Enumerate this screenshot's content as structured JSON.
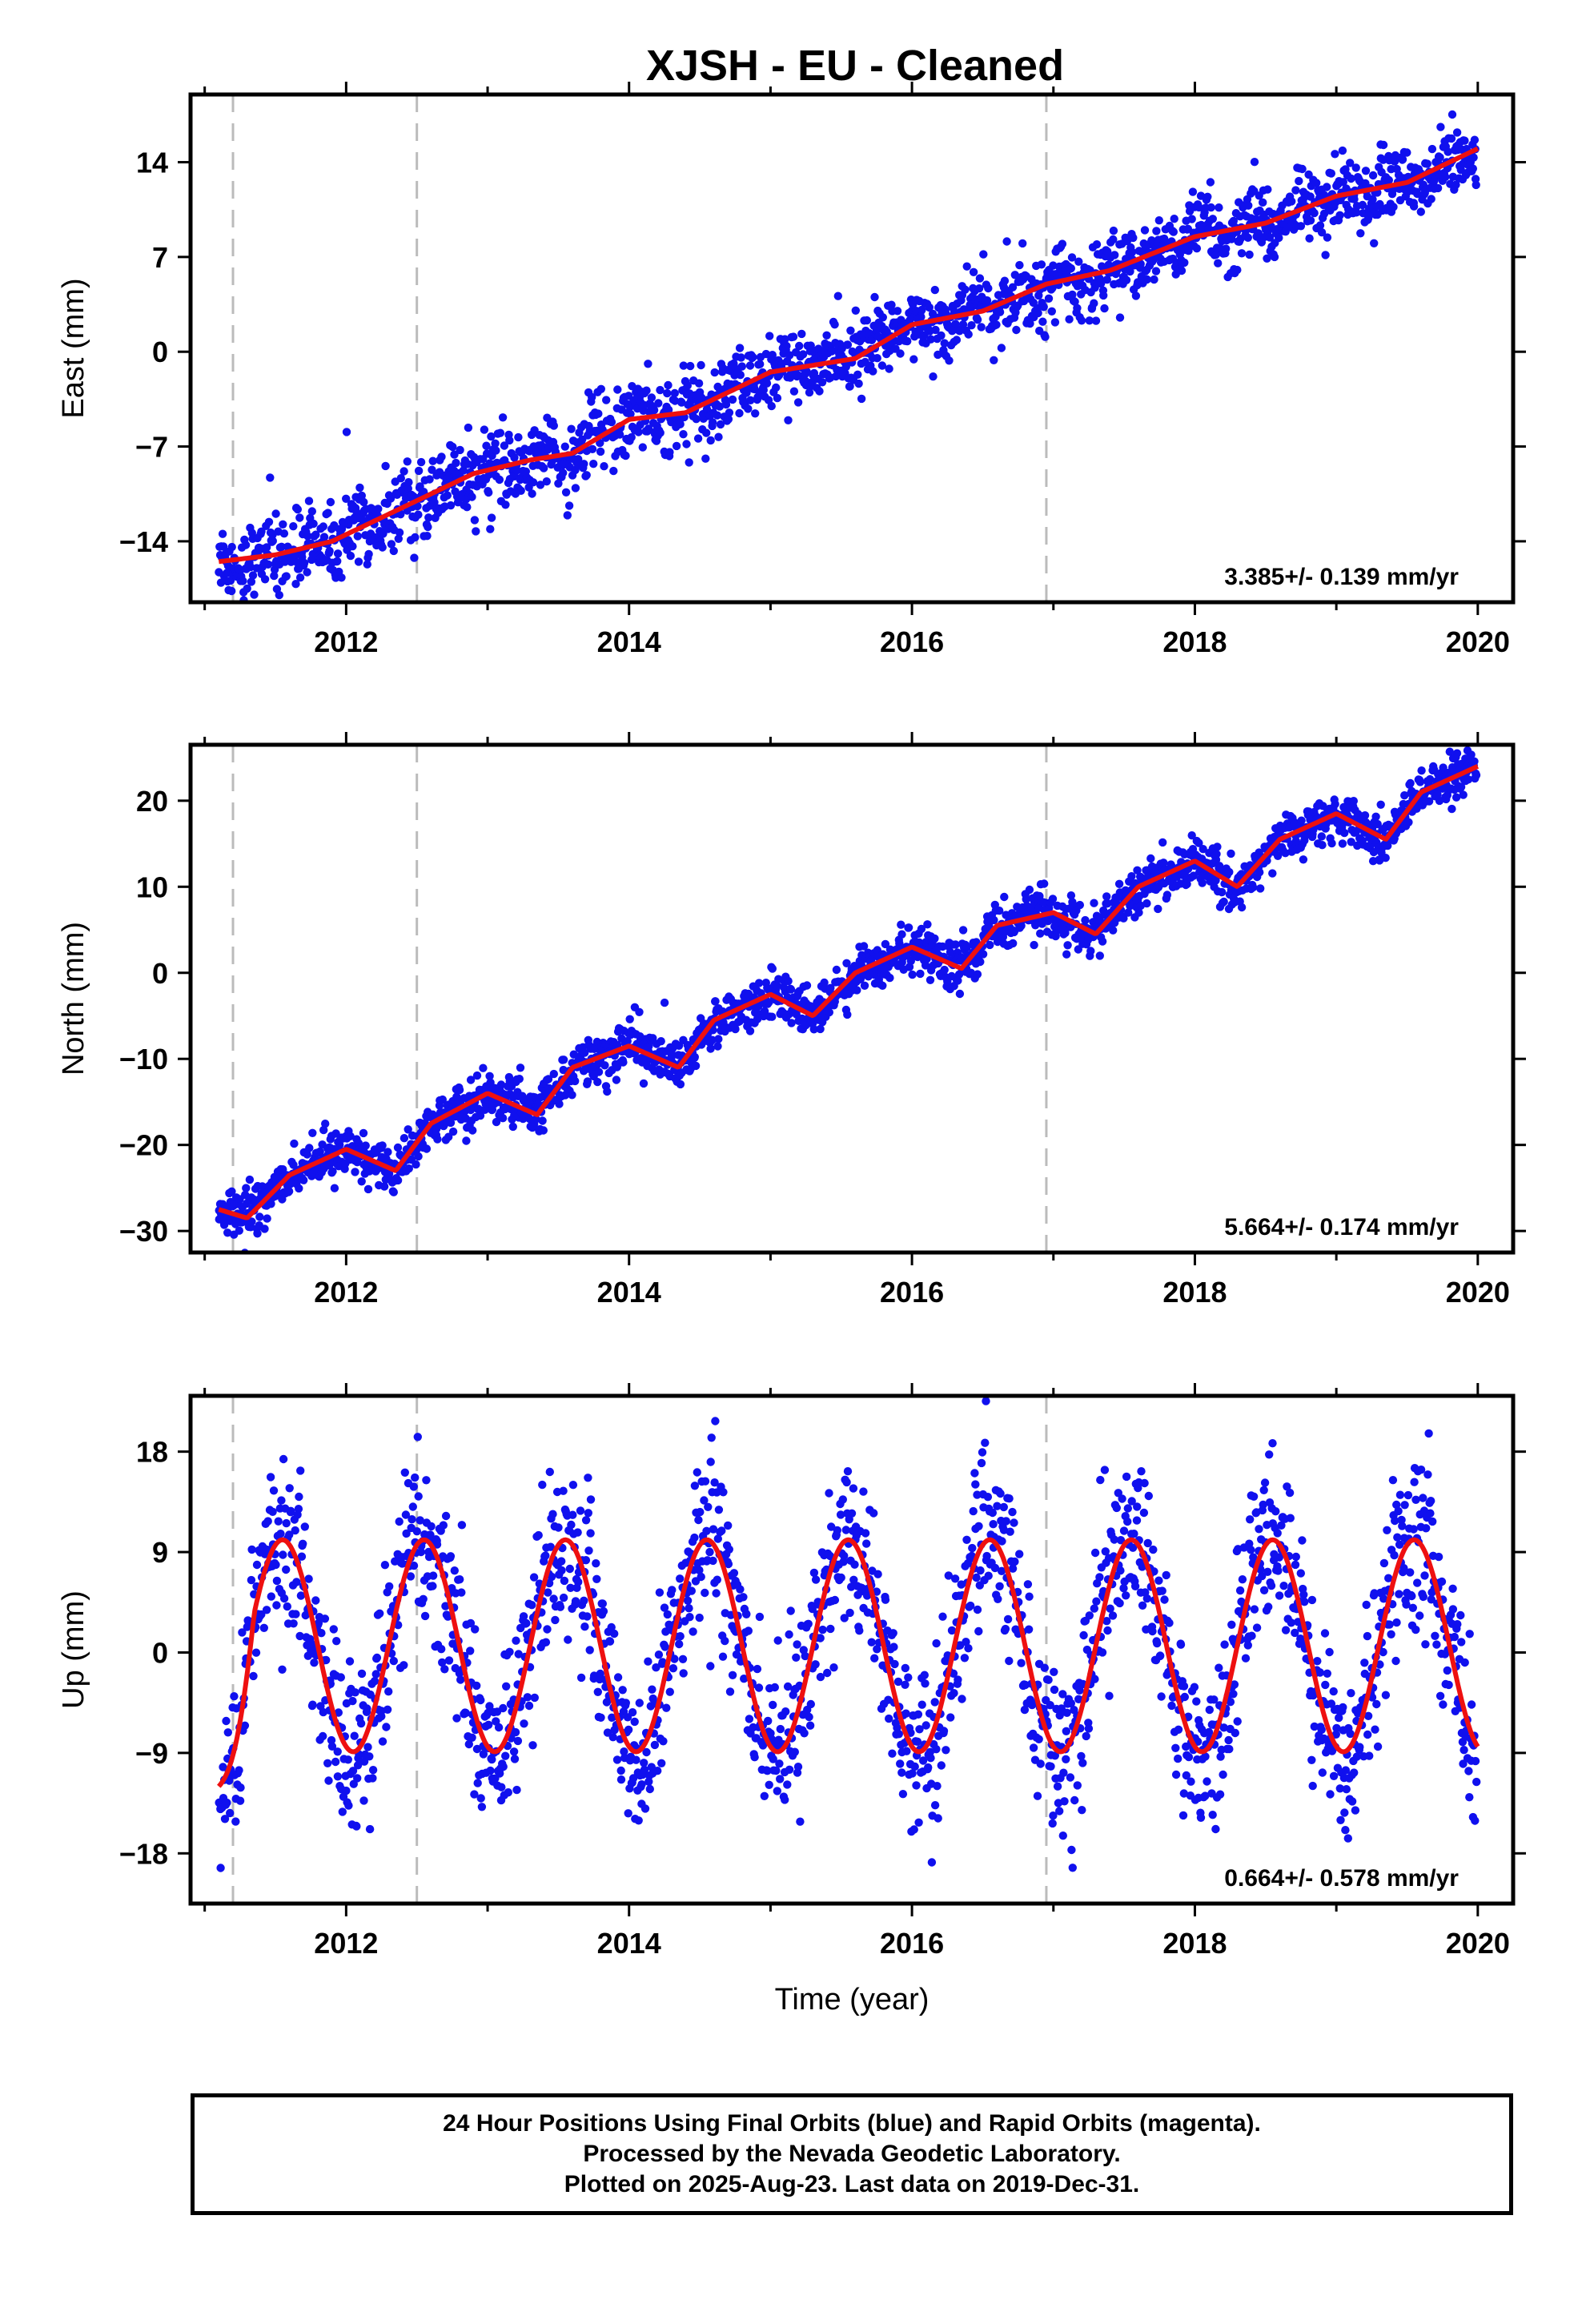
{
  "title": "XJSH  - EU - Cleaned",
  "footer": {
    "line1": "24 Hour Positions Using Final Orbits (blue) and Rapid Orbits (magenta).",
    "line2": "Processed by the Nevada Geodetic Laboratory.",
    "line3": "Plotted on 2025-Aug-23. Last data on 2019-Dec-31."
  },
  "colors": {
    "points": "#1010ee",
    "fit": "#ee1010",
    "breaks": "#bbbbbb",
    "frame": "#000000"
  },
  "chart_data": [
    {
      "type": "scatter",
      "panel": "east",
      "ylabel": "East (mm)",
      "xlabel": "",
      "xlim": [
        2010.9,
        2020.25
      ],
      "ylim": [
        -18.5,
        19
      ],
      "x_ticks": [
        2012,
        2014,
        2016,
        2018,
        2020
      ],
      "y_ticks": [
        -14,
        -7,
        0,
        7,
        14
      ],
      "rate_text": "3.385+/- 0.139 mm/yr",
      "break_lines": [
        2011.2,
        2012.5,
        2016.95
      ],
      "series": [
        {
          "role": "fit",
          "x": [
            2011.1,
            2011.5,
            2011.9,
            2012.2,
            2012.5,
            2012.9,
            2013.3,
            2013.6,
            2014.0,
            2014.4,
            2015.0,
            2015.6,
            2016.0,
            2016.5,
            2016.95,
            2017.4,
            2018.0,
            2018.5,
            2019.0,
            2019.5,
            2020.0
          ],
          "y": [
            -15.5,
            -15.0,
            -14.0,
            -12.5,
            -11.0,
            -9.0,
            -8.0,
            -7.5,
            -5.0,
            -4.5,
            -1.5,
            -0.5,
            2.0,
            3.0,
            5.0,
            6.0,
            8.5,
            9.5,
            11.5,
            12.5,
            15.0
          ]
        },
        {
          "role": "data",
          "scatter_mm": 1.3,
          "seasonal_mm": 0.6
        }
      ]
    },
    {
      "type": "scatter",
      "panel": "north",
      "ylabel": "North (mm)",
      "xlabel": "",
      "xlim": [
        2010.9,
        2020.25
      ],
      "ylim": [
        -32.5,
        26.5
      ],
      "x_ticks": [
        2012,
        2014,
        2016,
        2018,
        2020
      ],
      "y_ticks": [
        -30,
        -20,
        -10,
        0,
        10,
        20
      ],
      "rate_text": "5.664+/- 0.174 mm/yr",
      "break_lines": [
        2011.2,
        2012.5,
        2016.95
      ],
      "series": [
        {
          "role": "fit",
          "x": [
            2011.1,
            2011.3,
            2011.6,
            2012.0,
            2012.35,
            2012.6,
            2013.0,
            2013.35,
            2013.6,
            2014.0,
            2014.35,
            2014.6,
            2015.0,
            2015.3,
            2015.6,
            2016.0,
            2016.35,
            2016.6,
            2017.0,
            2017.3,
            2017.6,
            2018.0,
            2018.3,
            2018.6,
            2019.0,
            2019.35,
            2019.6,
            2020.0
          ],
          "y": [
            -27.5,
            -28.5,
            -23.5,
            -20.5,
            -23.0,
            -17.5,
            -14.0,
            -16.5,
            -11.0,
            -8.5,
            -11.0,
            -5.5,
            -2.5,
            -5.0,
            0.0,
            3.0,
            0.5,
            5.5,
            7.0,
            4.5,
            10.0,
            13.0,
            10.0,
            15.5,
            18.5,
            15.5,
            21.0,
            24.0
          ]
        },
        {
          "role": "data",
          "scatter_mm": 1.4,
          "seasonal_mm": 0.0
        }
      ]
    },
    {
      "type": "scatter",
      "panel": "up",
      "ylabel": "Up (mm)",
      "xlabel": "Time (year)",
      "xlim": [
        2010.9,
        2020.25
      ],
      "ylim": [
        -22.5,
        23
      ],
      "x_ticks": [
        2012,
        2014,
        2016,
        2018,
        2020
      ],
      "y_ticks": [
        -18,
        -9,
        0,
        9,
        18
      ],
      "rate_text": "0.664+/- 0.578 mm/yr",
      "break_lines": [
        2011.2,
        2012.5,
        2016.95
      ],
      "series": [
        {
          "role": "fit",
          "annual_amplitude_mm": 9.5,
          "peak_phase_year_fraction": 0.55,
          "offset_mm": 0.6,
          "start_value_mm": -12
        },
        {
          "role": "data",
          "scatter_mm": 3.8,
          "seasonal_mm": 0.0
        }
      ]
    }
  ]
}
